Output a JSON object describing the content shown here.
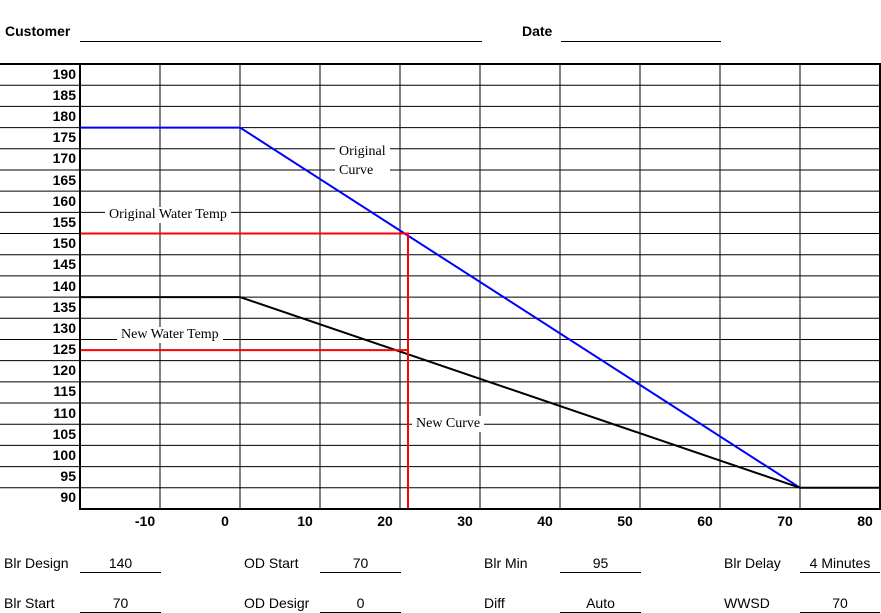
{
  "header": {
    "customer_label": "Customer",
    "date_label": "Date"
  },
  "chart_data": {
    "type": "line",
    "title": "",
    "xlabel": "",
    "ylabel": "",
    "xlim": [
      -20,
      80
    ],
    "ylim": [
      87.5,
      192.5
    ],
    "grid": true,
    "x_ticks": [
      "-10",
      "0",
      "10",
      "20",
      "30",
      "40",
      "50",
      "60",
      "70",
      "80"
    ],
    "y_ticks": [
      "90",
      "95",
      "100",
      "105",
      "110",
      "115",
      "120",
      "125",
      "130",
      "135",
      "140",
      "145",
      "150",
      "155",
      "160",
      "165",
      "170",
      "175",
      "180",
      "185",
      "190"
    ],
    "series": [
      {
        "color": "#0000ff",
        "x": [
          -20,
          0,
          70
        ],
        "y": [
          177.5,
          177.5,
          92.5
        ]
      },
      {
        "color": "#000000",
        "x": [
          -20,
          0,
          70,
          80
        ],
        "y": [
          137.5,
          137.5,
          92.5,
          92.5
        ]
      },
      {
        "color": "#ff0000",
        "x": [
          -20,
          21,
          21
        ],
        "y": [
          152.5,
          152.5,
          87.5
        ]
      },
      {
        "color": "#ff0000",
        "x": [
          -20,
          21
        ],
        "y": [
          125,
          125
        ]
      }
    ],
    "annotations": [
      {
        "text": "Original",
        "text2": "Curve"
      },
      {
        "text": "Original Water Temp"
      },
      {
        "text": "New Water Temp"
      },
      {
        "text": "New Curve"
      }
    ]
  },
  "params": {
    "row1": [
      {
        "label": "Blr Design",
        "value": "140"
      },
      {
        "label": "OD Start",
        "value": "70"
      },
      {
        "label": "Blr Min",
        "value": "95"
      },
      {
        "label": "Blr Delay",
        "value": "4 Minutes"
      }
    ],
    "row2": [
      {
        "label": "Blr Start",
        "value": "70"
      },
      {
        "label": "OD Desigr",
        "value": "0"
      },
      {
        "label": "Diff",
        "value": "Auto"
      },
      {
        "label": "WWSD",
        "value": "70"
      }
    ]
  }
}
